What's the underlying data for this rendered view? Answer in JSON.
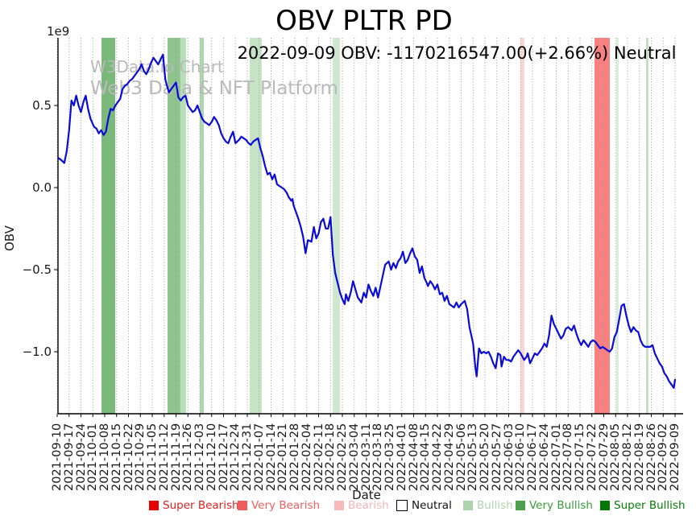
{
  "watermark": {
    "line1": "W3Data.io Chart",
    "line2": "Web3 Data & NFT Platform"
  },
  "chart_data": {
    "type": "line",
    "title": "OBV PLTR PD",
    "subtitle": "2022-09-09 OBV: -1170216547.00(+2.66%) Neutral",
    "xlabel": "Date",
    "ylabel": "OBV",
    "y_offset_label": "1e9",
    "grid": "vertical-dotted",
    "ylim_e9": [
      -1.38,
      0.91
    ],
    "yticks": [
      {
        "value": 0.5,
        "label": "0.5"
      },
      {
        "value": 0.0,
        "label": "0.0"
      },
      {
        "value": -0.5,
        "label": "−0.5"
      },
      {
        "value": -1.0,
        "label": "−1.0"
      }
    ],
    "x_categories": [
      "2021-09-10",
      "2021-09-17",
      "2021-09-24",
      "2021-10-01",
      "2021-10-08",
      "2021-10-15",
      "2021-10-22",
      "2021-10-29",
      "2021-11-05",
      "2021-11-12",
      "2021-11-19",
      "2021-11-26",
      "2021-12-03",
      "2021-12-10",
      "2021-12-17",
      "2021-12-24",
      "2021-12-31",
      "2022-01-07",
      "2022-01-14",
      "2022-01-21",
      "2022-01-28",
      "2022-02-04",
      "2022-02-11",
      "2022-02-18",
      "2022-02-25",
      "2022-03-04",
      "2022-03-11",
      "2022-03-18",
      "2022-03-25",
      "2022-04-01",
      "2022-04-08",
      "2022-04-15",
      "2022-04-22",
      "2022-04-29",
      "2022-05-06",
      "2022-05-13",
      "2022-05-20",
      "2022-05-27",
      "2022-06-03",
      "2022-06-10",
      "2022-06-17",
      "2022-06-24",
      "2022-07-01",
      "2022-07-08",
      "2022-07-15",
      "2022-07-22",
      "2022-07-29",
      "2022-08-05",
      "2022-08-12",
      "2022-08-19",
      "2022-08-26",
      "2022-09-02",
      "2022-09-09"
    ],
    "series": [
      {
        "name": "OBV",
        "color": "#0b0bd6",
        "last_value": -1170216547.0,
        "last_change_pct": "+2.66%",
        "last_signal": "Neutral",
        "points_week_value_e9": [
          [
            0.1,
            0.18
          ],
          [
            0.3,
            0.17
          ],
          [
            0.6,
            0.15
          ],
          [
            0.8,
            0.22
          ],
          [
            1.0,
            0.35
          ],
          [
            1.2,
            0.53
          ],
          [
            1.4,
            0.5
          ],
          [
            1.6,
            0.56
          ],
          [
            1.8,
            0.5
          ],
          [
            2.0,
            0.46
          ],
          [
            2.2,
            0.52
          ],
          [
            2.4,
            0.56
          ],
          [
            2.6,
            0.48
          ],
          [
            2.8,
            0.42
          ],
          [
            3.1,
            0.37
          ],
          [
            3.3,
            0.36
          ],
          [
            3.5,
            0.33
          ],
          [
            3.7,
            0.35
          ],
          [
            3.9,
            0.32
          ],
          [
            4.1,
            0.34
          ],
          [
            4.3,
            0.42
          ],
          [
            4.5,
            0.48
          ],
          [
            4.7,
            0.47
          ],
          [
            4.9,
            0.5
          ],
          [
            5.1,
            0.52
          ],
          [
            5.3,
            0.54
          ],
          [
            5.5,
            0.6
          ],
          [
            5.7,
            0.62
          ],
          [
            5.9,
            0.63
          ],
          [
            6.1,
            0.65
          ],
          [
            6.3,
            0.66
          ],
          [
            6.5,
            0.68
          ],
          [
            6.7,
            0.7
          ],
          [
            6.9,
            0.72
          ],
          [
            7.1,
            0.75
          ],
          [
            7.3,
            0.71
          ],
          [
            7.5,
            0.69
          ],
          [
            7.7,
            0.72
          ],
          [
            7.9,
            0.76
          ],
          [
            8.1,
            0.79
          ],
          [
            8.3,
            0.77
          ],
          [
            8.5,
            0.75
          ],
          [
            8.7,
            0.78
          ],
          [
            8.9,
            0.81
          ],
          [
            9.1,
            0.66
          ],
          [
            9.2,
            0.63
          ],
          [
            9.4,
            0.58
          ],
          [
            9.6,
            0.6
          ],
          [
            9.8,
            0.62
          ],
          [
            10.0,
            0.64
          ],
          [
            10.2,
            0.55
          ],
          [
            10.4,
            0.53
          ],
          [
            10.6,
            0.55
          ],
          [
            10.8,
            0.56
          ],
          [
            11.0,
            0.5
          ],
          [
            11.2,
            0.48
          ],
          [
            11.4,
            0.46
          ],
          [
            11.6,
            0.47
          ],
          [
            11.8,
            0.5
          ],
          [
            12.0,
            0.46
          ],
          [
            12.2,
            0.42
          ],
          [
            12.4,
            0.4
          ],
          [
            12.6,
            0.39
          ],
          [
            12.8,
            0.38
          ],
          [
            13.0,
            0.4
          ],
          [
            13.2,
            0.43
          ],
          [
            13.4,
            0.41
          ],
          [
            13.6,
            0.38
          ],
          [
            13.8,
            0.33
          ],
          [
            14.0,
            0.3
          ],
          [
            14.2,
            0.28
          ],
          [
            14.4,
            0.27
          ],
          [
            14.6,
            0.31
          ],
          [
            14.8,
            0.34
          ],
          [
            15.0,
            0.27
          ],
          [
            15.3,
            0.29
          ],
          [
            15.5,
            0.31
          ],
          [
            15.9,
            0.29
          ],
          [
            16.1,
            0.27
          ],
          [
            16.3,
            0.26
          ],
          [
            16.5,
            0.28
          ],
          [
            16.7,
            0.29
          ],
          [
            16.9,
            0.3
          ],
          [
            17.1,
            0.24
          ],
          [
            17.3,
            0.19
          ],
          [
            17.5,
            0.13
          ],
          [
            17.7,
            0.08
          ],
          [
            17.9,
            0.09
          ],
          [
            18.1,
            0.05
          ],
          [
            18.3,
            0.08
          ],
          [
            18.5,
            0.02
          ],
          [
            18.7,
            0.01
          ],
          [
            18.9,
            0.0
          ],
          [
            19.1,
            -0.01
          ],
          [
            19.3,
            -0.03
          ],
          [
            19.5,
            -0.06
          ],
          [
            19.7,
            -0.08
          ],
          [
            19.8,
            -0.07
          ],
          [
            19.9,
            -0.11
          ],
          [
            20.1,
            -0.15
          ],
          [
            20.3,
            -0.19
          ],
          [
            20.5,
            -0.24
          ],
          [
            20.7,
            -0.3
          ],
          [
            20.9,
            -0.4
          ],
          [
            21.1,
            -0.32
          ],
          [
            21.4,
            -0.33
          ],
          [
            21.6,
            -0.24
          ],
          [
            21.8,
            -0.31
          ],
          [
            22.0,
            -0.28
          ],
          [
            22.2,
            -0.21
          ],
          [
            22.4,
            -0.19
          ],
          [
            22.6,
            -0.25
          ],
          [
            22.8,
            -0.25
          ],
          [
            23.0,
            -0.18
          ],
          [
            23.2,
            -0.41
          ],
          [
            23.4,
            -0.52
          ],
          [
            23.6,
            -0.58
          ],
          [
            23.8,
            -0.64
          ],
          [
            24.0,
            -0.68
          ],
          [
            24.2,
            -0.71
          ],
          [
            24.3,
            -0.65
          ],
          [
            24.5,
            -0.69
          ],
          [
            24.7,
            -0.64
          ],
          [
            24.9,
            -0.57
          ],
          [
            25.1,
            -0.62
          ],
          [
            25.3,
            -0.67
          ],
          [
            25.6,
            -0.7
          ],
          [
            25.8,
            -0.64
          ],
          [
            26.0,
            -0.67
          ],
          [
            26.2,
            -0.59
          ],
          [
            26.4,
            -0.63
          ],
          [
            26.6,
            -0.66
          ],
          [
            26.8,
            -0.61
          ],
          [
            27.0,
            -0.67
          ],
          [
            27.3,
            -0.57
          ],
          [
            27.6,
            -0.47
          ],
          [
            27.9,
            -0.45
          ],
          [
            28.1,
            -0.5
          ],
          [
            28.3,
            -0.46
          ],
          [
            28.5,
            -0.49
          ],
          [
            28.7,
            -0.45
          ],
          [
            28.9,
            -0.43
          ],
          [
            29.1,
            -0.39
          ],
          [
            29.3,
            -0.46
          ],
          [
            29.5,
            -0.44
          ],
          [
            29.7,
            -0.4
          ],
          [
            29.9,
            -0.37
          ],
          [
            30.1,
            -0.42
          ],
          [
            30.3,
            -0.44
          ],
          [
            30.5,
            -0.52
          ],
          [
            30.7,
            -0.48
          ],
          [
            30.9,
            -0.55
          ],
          [
            31.1,
            -0.58
          ],
          [
            31.2,
            -0.6
          ],
          [
            31.4,
            -0.57
          ],
          [
            31.6,
            -0.59
          ],
          [
            31.8,
            -0.62
          ],
          [
            32.0,
            -0.59
          ],
          [
            32.2,
            -0.65
          ],
          [
            32.4,
            -0.64
          ],
          [
            32.6,
            -0.69
          ],
          [
            32.8,
            -0.66
          ],
          [
            33.0,
            -0.71
          ],
          [
            33.2,
            -0.72
          ],
          [
            33.4,
            -0.73
          ],
          [
            33.6,
            -0.7
          ],
          [
            33.8,
            -0.73
          ],
          [
            34.0,
            -0.71
          ],
          [
            34.3,
            -0.69
          ],
          [
            34.5,
            -0.74
          ],
          [
            34.7,
            -0.85
          ],
          [
            35.0,
            -0.95
          ],
          [
            35.2,
            -1.1
          ],
          [
            35.3,
            -1.15
          ],
          [
            35.5,
            -0.98
          ],
          [
            35.7,
            -1.01
          ],
          [
            35.9,
            -1.0
          ],
          [
            36.1,
            -1.01
          ],
          [
            36.3,
            -1.0
          ],
          [
            36.5,
            -1.03
          ],
          [
            36.7,
            -1.07
          ],
          [
            36.9,
            -1.1
          ],
          [
            37.1,
            -1.01
          ],
          [
            37.3,
            -1.02
          ],
          [
            37.4,
            -1.09
          ],
          [
            37.6,
            -1.03
          ],
          [
            37.8,
            -1.05
          ],
          [
            38.0,
            -1.05
          ],
          [
            38.2,
            -1.06
          ],
          [
            38.4,
            -1.03
          ],
          [
            38.6,
            -1.01
          ],
          [
            38.8,
            -0.99
          ],
          [
            39.0,
            -1.01
          ],
          [
            39.3,
            -1.05
          ],
          [
            39.5,
            -1.03
          ],
          [
            39.6,
            -1.01
          ],
          [
            39.8,
            -1.07
          ],
          [
            40.0,
            -1.04
          ],
          [
            40.2,
            -1.01
          ],
          [
            40.4,
            -1.02
          ],
          [
            40.6,
            -1.0
          ],
          [
            40.8,
            -0.98
          ],
          [
            41.0,
            -0.95
          ],
          [
            41.2,
            -0.97
          ],
          [
            41.4,
            -0.9
          ],
          [
            41.6,
            -0.78
          ],
          [
            41.8,
            -0.83
          ],
          [
            42.0,
            -0.86
          ],
          [
            42.2,
            -0.89
          ],
          [
            42.4,
            -0.92
          ],
          [
            42.6,
            -0.9
          ],
          [
            42.8,
            -0.86
          ],
          [
            43.0,
            -0.85
          ],
          [
            43.3,
            -0.87
          ],
          [
            43.5,
            -0.84
          ],
          [
            43.7,
            -0.89
          ],
          [
            43.9,
            -0.93
          ],
          [
            44.1,
            -0.96
          ],
          [
            44.3,
            -0.93
          ],
          [
            44.5,
            -0.95
          ],
          [
            44.7,
            -0.97
          ],
          [
            44.9,
            -0.94
          ],
          [
            45.1,
            -0.93
          ],
          [
            45.3,
            -0.94
          ],
          [
            45.5,
            -0.96
          ],
          [
            45.7,
            -0.98
          ],
          [
            45.9,
            -0.97
          ],
          [
            46.1,
            -0.98
          ],
          [
            46.3,
            -0.99
          ],
          [
            46.5,
            -1.0
          ],
          [
            46.7,
            -0.98
          ],
          [
            46.9,
            -0.91
          ],
          [
            47.1,
            -0.88
          ],
          [
            47.3,
            -0.8
          ],
          [
            47.5,
            -0.72
          ],
          [
            47.7,
            -0.71
          ],
          [
            47.9,
            -0.78
          ],
          [
            48.1,
            -0.84
          ],
          [
            48.3,
            -0.88
          ],
          [
            48.5,
            -0.85
          ],
          [
            48.7,
            -0.87
          ],
          [
            48.9,
            -0.88
          ],
          [
            49.1,
            -0.93
          ],
          [
            49.3,
            -0.96
          ],
          [
            49.5,
            -0.97
          ],
          [
            49.7,
            -0.97
          ],
          [
            49.9,
            -0.97
          ],
          [
            50.1,
            -0.96
          ],
          [
            50.3,
            -1.01
          ],
          [
            50.5,
            -1.04
          ],
          [
            50.7,
            -1.07
          ],
          [
            50.9,
            -1.09
          ],
          [
            51.1,
            -1.13
          ],
          [
            51.3,
            -1.15
          ],
          [
            51.5,
            -1.18
          ],
          [
            51.7,
            -1.2
          ],
          [
            51.9,
            -1.22
          ],
          [
            52.0,
            -1.17
          ]
        ]
      }
    ],
    "signal_bands": [
      {
        "label": "Very Bullish",
        "from_week": 3.73,
        "to_week": 4.88,
        "color": "#79b979"
      },
      {
        "label": "Very Bullish",
        "from_week": 9.29,
        "to_week": 10.37,
        "color": "#8fc48f"
      },
      {
        "label": "Bullish",
        "from_week": 10.37,
        "to_week": 10.85,
        "color": "#b9dcb9"
      },
      {
        "label": "Bullish",
        "from_week": 12.0,
        "to_week": 12.34,
        "color": "#aed6ae"
      },
      {
        "label": "Bullish",
        "from_week": 16.2,
        "to_week": 17.22,
        "color": "#c6e3c6"
      },
      {
        "label": "Bullish",
        "from_week": 23.19,
        "to_week": 23.8,
        "color": "#cfe7cf"
      },
      {
        "label": "Bearish",
        "from_week": 38.98,
        "to_week": 39.32,
        "color": "#f8d6d6"
      },
      {
        "label": "Very Bearish",
        "from_week": 45.22,
        "to_week": 46.51,
        "color": "#f98181"
      },
      {
        "label": "Bullish",
        "from_week": 47.05,
        "to_week": 47.25,
        "color": "#dcecdc"
      },
      {
        "label": "Bullish",
        "from_week": 49.56,
        "to_week": 49.76,
        "color": "#c2dfc2"
      }
    ],
    "legend": {
      "position": "bottom",
      "items": [
        {
          "label": "Super Bearish",
          "color": "#e60000",
          "text_color": "#dd2222"
        },
        {
          "label": "Very Bearish",
          "color": "#f15b5b",
          "text_color": "#ef6060"
        },
        {
          "label": "Bearish",
          "color": "#f7baba",
          "text_color": "#f3b6b6"
        },
        {
          "label": "Neutral",
          "color": "#ffffff",
          "text_color": "#111111"
        },
        {
          "label": "Bullish",
          "color": "#aed4ae",
          "text_color": "#aed4ae"
        },
        {
          "label": "Very Bullish",
          "color": "#4ea04e",
          "text_color": "#3d9b3d"
        },
        {
          "label": "Super Bullish",
          "color": "#067806",
          "text_color": "#0a7a0a"
        }
      ]
    }
  }
}
